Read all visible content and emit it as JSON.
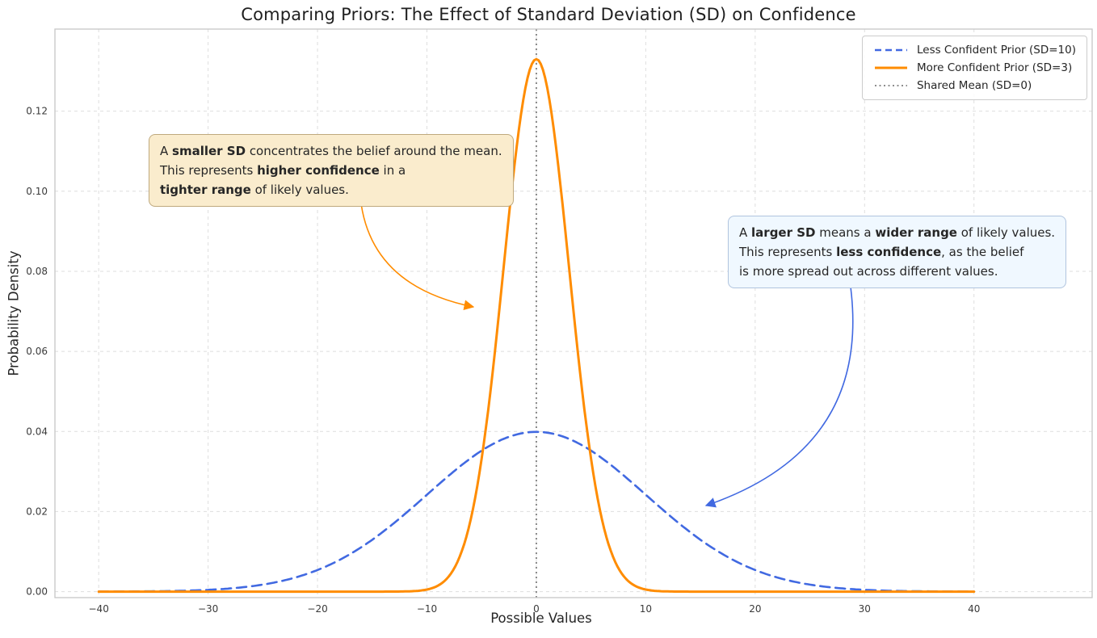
{
  "chart_data": {
    "type": "line",
    "title": "Comparing Priors: The Effect of Standard Deviation (SD) on Confidence",
    "xlabel": "Possible Values",
    "ylabel": "Probability Density",
    "xlim": [
      -44,
      50.8
    ],
    "ylim": [
      -0.0015,
      0.1405
    ],
    "x_data_range": [
      -40,
      40
    ],
    "xticks": [
      -40,
      -30,
      -20,
      -10,
      0,
      10,
      20,
      30,
      40
    ],
    "xtick_labels": [
      "−40",
      "−30",
      "−20",
      "−10",
      "0",
      "10",
      "20",
      "30",
      "40"
    ],
    "yticks": [
      0,
      0.02,
      0.04,
      0.06,
      0.08,
      0.1,
      0.12
    ],
    "ytick_labels": [
      "0.00",
      "0.02",
      "0.04",
      "0.06",
      "0.08",
      "0.10",
      "0.12"
    ],
    "grid": true,
    "series": [
      {
        "name": "Less Confident Prior (SD=10)",
        "distribution": "normal",
        "mean": 0,
        "sd": 10,
        "peak_density": 0.0399,
        "color": "#4169e1",
        "line_style": "dashed",
        "line_width": 2.6,
        "slug": "less-confident-prior"
      },
      {
        "name": "More Confident Prior (SD=3)",
        "distribution": "normal",
        "mean": 0,
        "sd": 3,
        "peak_density": 0.133,
        "color": "#ff8c00",
        "line_style": "solid",
        "line_width": 3,
        "slug": "more-confident-prior"
      }
    ],
    "vline": {
      "x": 0,
      "label": "Shared Mean (SD=0)",
      "color": "#7f7f7f",
      "line_style": "dotted"
    },
    "legend": {
      "position": "upper right",
      "entries": [
        {
          "label": "Less Confident Prior (SD=10)",
          "color": "#4169e1",
          "style": "dashed"
        },
        {
          "label": "More Confident Prior (SD=3)",
          "color": "#ff8c00",
          "style": "solid"
        },
        {
          "label": "Shared Mean (SD=0)",
          "color": "#7f7f7f",
          "style": "dotted"
        }
      ]
    },
    "annotations": [
      {
        "id": "smaller-sd",
        "bg": "#faeccd",
        "border": "#bfa97e",
        "arrow_color": "#ff8c00",
        "lines": [
          [
            {
              "t": "A "
            },
            {
              "t": "smaller SD",
              "b": true
            },
            {
              "t": " concentrates the belief around the mean."
            }
          ],
          [
            {
              "t": "This represents "
            },
            {
              "t": "higher confidence",
              "b": true
            },
            {
              "t": " in a"
            }
          ],
          [
            {
              "t": "tighter range",
              "b": true
            },
            {
              "t": " of likely values."
            }
          ]
        ]
      },
      {
        "id": "larger-sd",
        "bg": "#f0f8ff",
        "border": "#b0c4de",
        "arrow_color": "#4169e1",
        "lines": [
          [
            {
              "t": "A "
            },
            {
              "t": "larger SD",
              "b": true
            },
            {
              "t": " means a "
            },
            {
              "t": "wider range",
              "b": true
            },
            {
              "t": " of likely values."
            }
          ],
          [
            {
              "t": "This represents "
            },
            {
              "t": "less confidence",
              "b": true
            },
            {
              "t": ", as the belief"
            }
          ],
          [
            {
              "t": "is more spread out across different values."
            }
          ]
        ]
      }
    ]
  }
}
